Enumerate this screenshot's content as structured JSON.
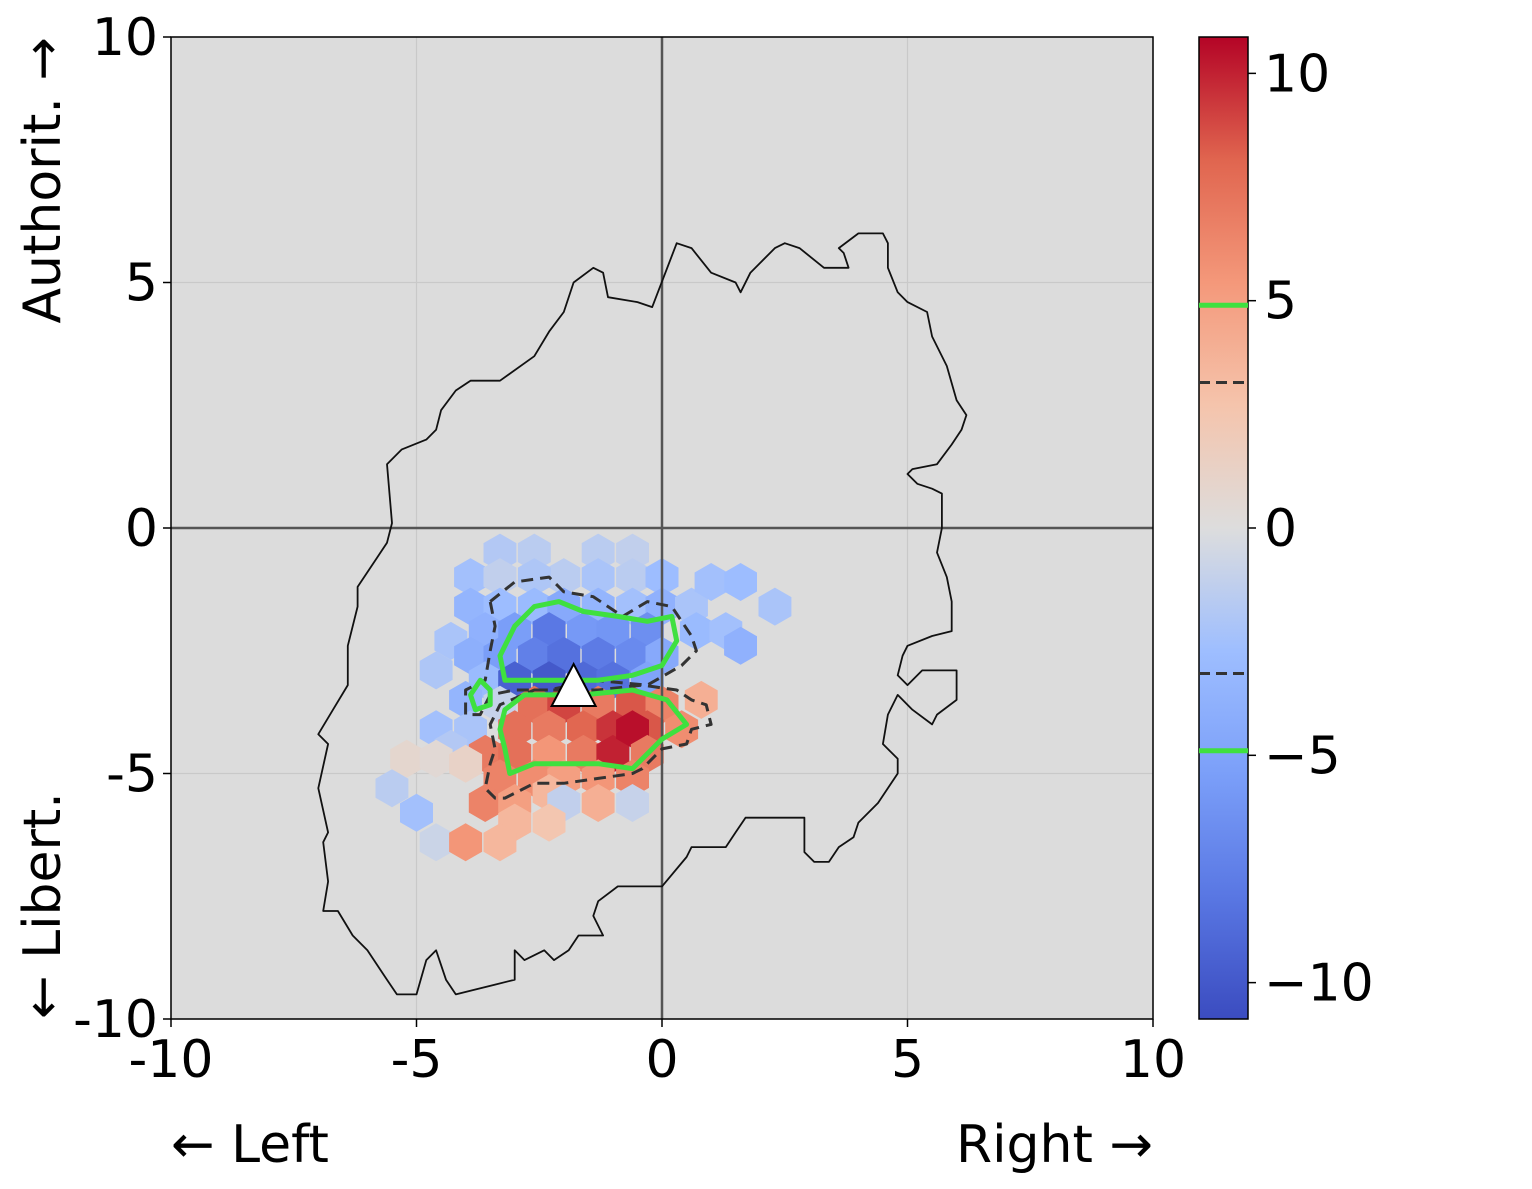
{
  "chart_data": {
    "type": "hexbin",
    "title": "",
    "x_tick_labels": [
      "-10",
      "-5",
      "0",
      "5",
      "10"
    ],
    "y_tick_labels": [
      "10",
      "5",
      "0",
      "-5",
      "-10"
    ],
    "xlim": [
      -10,
      10
    ],
    "ylim": [
      -10,
      10
    ],
    "xlabel_left": "← Left",
    "xlabel_right": "Right →",
    "ylabel_top": "Authorit. →",
    "ylabel_bottom": "← Libert.",
    "grid": true,
    "background_color": "#dcdcdc",
    "reference_lines": [
      {
        "axis": "x",
        "value": 0
      },
      {
        "axis": "y",
        "value": 0
      }
    ],
    "colorbar": {
      "colormap": "coolwarm",
      "range": [
        -10.8,
        10.8
      ],
      "tick_labels": [
        "10",
        "5",
        "0",
        "−5",
        "−10"
      ],
      "tick_values": [
        10,
        5,
        0,
        -5,
        -10
      ],
      "contour_markers": [
        {
          "value": 4.9,
          "style": "solid",
          "color": "#3fe03f"
        },
        {
          "value": 3.2,
          "style": "dashed",
          "color": "#333333"
        },
        {
          "value": -3.2,
          "style": "dashed",
          "color": "#333333"
        },
        {
          "value": -4.9,
          "style": "solid",
          "color": "#3fe03f"
        }
      ]
    },
    "hexbins": [
      {
        "x": -1.3,
        "y": -0.5,
        "v": -1.5
      },
      {
        "x": -0.6,
        "y": -0.5,
        "v": -1.2
      },
      {
        "x": -2.0,
        "y": -1.0,
        "v": -1.5
      },
      {
        "x": -2.6,
        "y": -0.5,
        "v": -1.5
      },
      {
        "x": -3.3,
        "y": -0.5,
        "v": -1.8
      },
      {
        "x": -3.9,
        "y": -1.0,
        "v": -2.5
      },
      {
        "x": -3.3,
        "y": -1.0,
        "v": -1.2
      },
      {
        "x": -2.6,
        "y": -1.0,
        "v": -2.0
      },
      {
        "x": -1.3,
        "y": -1.0,
        "v": -2.2
      },
      {
        "x": -0.6,
        "y": -1.0,
        "v": -1.5
      },
      {
        "x": 0.0,
        "y": -1.0,
        "v": -2.8
      },
      {
        "x": -3.9,
        "y": -1.6,
        "v": -3.5
      },
      {
        "x": -3.3,
        "y": -1.6,
        "v": -2.8
      },
      {
        "x": -2.6,
        "y": -1.6,
        "v": -3.0
      },
      {
        "x": -2.0,
        "y": -1.6,
        "v": -4.5
      },
      {
        "x": -1.3,
        "y": -1.6,
        "v": -3.5
      },
      {
        "x": -0.6,
        "y": -1.6,
        "v": -2.5
      },
      {
        "x": 0.0,
        "y": -1.6,
        "v": -3.8
      },
      {
        "x": 0.6,
        "y": -1.6,
        "v": -2.2
      },
      {
        "x": 1.0,
        "y": -1.1,
        "v": -2.5
      },
      {
        "x": 1.6,
        "y": -1.1,
        "v": -2.8
      },
      {
        "x": 0.7,
        "y": -2.1,
        "v": -3.0
      },
      {
        "x": 1.3,
        "y": -2.1,
        "v": -2.5
      },
      {
        "x": 2.3,
        "y": -1.6,
        "v": -2.2
      },
      {
        "x": -3.6,
        "y": -2.1,
        "v": -3.8
      },
      {
        "x": -3.0,
        "y": -2.1,
        "v": -5.5
      },
      {
        "x": -2.3,
        "y": -2.1,
        "v": -8.0
      },
      {
        "x": -1.6,
        "y": -2.1,
        "v": -5.8
      },
      {
        "x": -1.0,
        "y": -2.1,
        "v": -6.0
      },
      {
        "x": -0.3,
        "y": -2.1,
        "v": -6.5
      },
      {
        "x": -4.3,
        "y": -2.3,
        "v": -2.2
      },
      {
        "x": -3.9,
        "y": -2.6,
        "v": -4.0
      },
      {
        "x": -3.3,
        "y": -2.6,
        "v": -5.5
      },
      {
        "x": -2.6,
        "y": -2.6,
        "v": -7.5
      },
      {
        "x": -2.0,
        "y": -2.6,
        "v": -8.5
      },
      {
        "x": -1.3,
        "y": -2.6,
        "v": -7.8
      },
      {
        "x": -0.6,
        "y": -2.6,
        "v": -6.8
      },
      {
        "x": 0.0,
        "y": -2.6,
        "v": -4.5
      },
      {
        "x": 1.6,
        "y": -2.4,
        "v": -3.8
      },
      {
        "x": -4.6,
        "y": -2.9,
        "v": -2.0
      },
      {
        "x": -3.6,
        "y": -3.1,
        "v": -3.0
      },
      {
        "x": -3.0,
        "y": -3.1,
        "v": -9.5
      },
      {
        "x": -2.3,
        "y": -3.1,
        "v": -10.0
      },
      {
        "x": -1.6,
        "y": -3.1,
        "v": -9.0
      },
      {
        "x": -1.0,
        "y": -3.1,
        "v": -8.5
      },
      {
        "x": -0.3,
        "y": -3.1,
        "v": -5.0
      },
      {
        "x": -4.0,
        "y": -3.5,
        "v": -3.5
      },
      {
        "x": -3.3,
        "y": -3.6,
        "v": -1.0
      },
      {
        "x": -2.6,
        "y": -3.6,
        "v": 7.5
      },
      {
        "x": -2.0,
        "y": -3.6,
        "v": 9.0
      },
      {
        "x": -1.3,
        "y": -3.6,
        "v": 7.0
      },
      {
        "x": -0.6,
        "y": -3.6,
        "v": 8.5
      },
      {
        "x": 0.0,
        "y": -3.6,
        "v": 6.5
      },
      {
        "x": 0.8,
        "y": -3.5,
        "v": 4.0
      },
      {
        "x": -4.6,
        "y": -4.1,
        "v": -2.5
      },
      {
        "x": -3.9,
        "y": -4.1,
        "v": -2.2
      },
      {
        "x": -3.0,
        "y": -4.1,
        "v": 7.5
      },
      {
        "x": -2.3,
        "y": -4.1,
        "v": 7.0
      },
      {
        "x": -1.6,
        "y": -4.1,
        "v": 8.0
      },
      {
        "x": -1.0,
        "y": -4.1,
        "v": 9.5
      },
      {
        "x": -0.3,
        "y": -4.1,
        "v": 8.5
      },
      {
        "x": 0.4,
        "y": -4.1,
        "v": 6.0
      },
      {
        "x": -4.3,
        "y": -4.5,
        "v": -1.8
      },
      {
        "x": -3.6,
        "y": -4.6,
        "v": 7.0
      },
      {
        "x": -3.0,
        "y": -4.6,
        "v": 7.5
      },
      {
        "x": -2.3,
        "y": -4.6,
        "v": 5.5
      },
      {
        "x": -1.6,
        "y": -4.6,
        "v": 7.0
      },
      {
        "x": -1.0,
        "y": -4.6,
        "v": 10.0
      },
      {
        "x": -0.6,
        "y": -4.1,
        "v": 10.5
      },
      {
        "x": -0.3,
        "y": -4.6,
        "v": 7.0
      },
      {
        "x": -5.2,
        "y": -4.7,
        "v": 0.8
      },
      {
        "x": -4.6,
        "y": -4.7,
        "v": 0.5
      },
      {
        "x": -4.0,
        "y": -4.8,
        "v": 1.2
      },
      {
        "x": -3.3,
        "y": -5.1,
        "v": 6.5
      },
      {
        "x": -2.6,
        "y": -5.1,
        "v": 6.0
      },
      {
        "x": -2.0,
        "y": -5.1,
        "v": 5.0
      },
      {
        "x": -1.3,
        "y": -5.1,
        "v": 5.5
      },
      {
        "x": -0.6,
        "y": -5.1,
        "v": 6.5
      },
      {
        "x": -5.5,
        "y": -5.3,
        "v": -1.5
      },
      {
        "x": -3.6,
        "y": -5.6,
        "v": 6.5
      },
      {
        "x": -3.0,
        "y": -5.6,
        "v": 5.0
      },
      {
        "x": -2.3,
        "y": -5.4,
        "v": 3.5
      },
      {
        "x": -2.0,
        "y": -5.6,
        "v": -1.2
      },
      {
        "x": -1.3,
        "y": -5.6,
        "v": 4.0
      },
      {
        "x": -0.6,
        "y": -5.6,
        "v": -1.0
      },
      {
        "x": -5.0,
        "y": -5.8,
        "v": -2.5
      },
      {
        "x": -3.0,
        "y": -6.0,
        "v": 3.5
      },
      {
        "x": -2.3,
        "y": -6.0,
        "v": 2.5
      },
      {
        "x": -4.6,
        "y": -6.4,
        "v": -0.8
      },
      {
        "x": -4.0,
        "y": -6.4,
        "v": 5.5
      },
      {
        "x": -3.3,
        "y": -6.4,
        "v": 3.5
      }
    ],
    "outline_polygon": [
      [
        -5.5,
        0.1
      ],
      [
        -5.6,
        1.3
      ],
      [
        -5.3,
        1.6
      ],
      [
        -4.8,
        1.8
      ],
      [
        -4.6,
        2.0
      ],
      [
        -4.5,
        2.4
      ],
      [
        -4.2,
        2.8
      ],
      [
        -3.9,
        3.0
      ],
      [
        -3.3,
        3.0
      ],
      [
        -2.6,
        3.5
      ],
      [
        -2.3,
        4.0
      ],
      [
        -2.0,
        4.4
      ],
      [
        -1.8,
        5.0
      ],
      [
        -1.4,
        5.3
      ],
      [
        -1.2,
        5.2
      ],
      [
        -1.1,
        4.7
      ],
      [
        -0.5,
        4.6
      ],
      [
        -0.2,
        4.5
      ],
      [
        0.3,
        5.8
      ],
      [
        0.6,
        5.7
      ],
      [
        1.0,
        5.2
      ],
      [
        1.5,
        5.0
      ],
      [
        1.6,
        4.8
      ],
      [
        1.8,
        5.2
      ],
      [
        2.0,
        5.4
      ],
      [
        2.3,
        5.7
      ],
      [
        2.5,
        5.8
      ],
      [
        2.8,
        5.7
      ],
      [
        3.3,
        5.3
      ],
      [
        3.8,
        5.3
      ],
      [
        3.7,
        5.6
      ],
      [
        3.6,
        5.7
      ],
      [
        4.0,
        6.0
      ],
      [
        4.5,
        6.0
      ],
      [
        4.6,
        5.8
      ],
      [
        4.6,
        5.3
      ],
      [
        4.8,
        4.8
      ],
      [
        5.0,
        4.6
      ],
      [
        5.4,
        4.4
      ],
      [
        5.5,
        3.9
      ],
      [
        5.8,
        3.3
      ],
      [
        6.0,
        2.6
      ],
      [
        6.2,
        2.3
      ],
      [
        6.1,
        2.0
      ],
      [
        5.9,
        1.7
      ],
      [
        5.6,
        1.3
      ],
      [
        5.1,
        1.2
      ],
      [
        5.0,
        1.1
      ],
      [
        5.2,
        0.9
      ],
      [
        5.5,
        0.8
      ],
      [
        5.7,
        0.7
      ],
      [
        5.7,
        0.0
      ],
      [
        5.6,
        -0.5
      ],
      [
        5.8,
        -1.0
      ],
      [
        5.9,
        -1.5
      ],
      [
        5.9,
        -2.1
      ],
      [
        5.5,
        -2.2
      ],
      [
        5.0,
        -2.4
      ],
      [
        4.9,
        -2.6
      ],
      [
        4.8,
        -3.0
      ],
      [
        5.0,
        -3.2
      ],
      [
        5.3,
        -2.9
      ],
      [
        6.0,
        -2.9
      ],
      [
        6.0,
        -3.5
      ],
      [
        5.6,
        -3.8
      ],
      [
        5.5,
        -4.0
      ],
      [
        5.1,
        -3.7
      ],
      [
        4.8,
        -3.4
      ],
      [
        4.6,
        -3.8
      ],
      [
        4.5,
        -4.4
      ],
      [
        4.8,
        -4.7
      ],
      [
        4.8,
        -5.0
      ],
      [
        4.4,
        -5.6
      ],
      [
        4.0,
        -6.0
      ],
      [
        3.9,
        -6.3
      ],
      [
        3.6,
        -6.5
      ],
      [
        3.4,
        -6.8
      ],
      [
        3.1,
        -6.8
      ],
      [
        2.9,
        -6.6
      ],
      [
        2.9,
        -5.9
      ],
      [
        1.7,
        -5.9
      ],
      [
        1.5,
        -6.2
      ],
      [
        1.3,
        -6.5
      ],
      [
        0.6,
        -6.5
      ],
      [
        0.5,
        -6.7
      ],
      [
        0.0,
        -7.3
      ],
      [
        -0.4,
        -7.3
      ],
      [
        -0.9,
        -7.3
      ],
      [
        -1.3,
        -7.6
      ],
      [
        -1.4,
        -7.9
      ],
      [
        -1.2,
        -8.3
      ],
      [
        -1.7,
        -8.3
      ],
      [
        -1.9,
        -8.6
      ],
      [
        -2.2,
        -8.8
      ],
      [
        -2.4,
        -8.6
      ],
      [
        -2.8,
        -8.8
      ],
      [
        -3.0,
        -8.6
      ],
      [
        -3.0,
        -9.2
      ],
      [
        -3.4,
        -9.3
      ],
      [
        -3.8,
        -9.4
      ],
      [
        -4.2,
        -9.5
      ],
      [
        -4.4,
        -9.2
      ],
      [
        -4.6,
        -8.6
      ],
      [
        -4.8,
        -8.8
      ],
      [
        -5.0,
        -9.5
      ],
      [
        -5.4,
        -9.5
      ],
      [
        -5.6,
        -9.2
      ],
      [
        -6.0,
        -8.6
      ],
      [
        -6.3,
        -8.3
      ],
      [
        -6.6,
        -7.8
      ],
      [
        -6.9,
        -7.8
      ],
      [
        -6.8,
        -7.2
      ],
      [
        -6.9,
        -6.4
      ],
      [
        -6.8,
        -6.2
      ],
      [
        -7.0,
        -5.3
      ],
      [
        -6.8,
        -4.4
      ],
      [
        -7.0,
        -4.2
      ],
      [
        -6.7,
        -3.7
      ],
      [
        -6.4,
        -3.2
      ],
      [
        -6.4,
        -2.4
      ],
      [
        -6.2,
        -1.6
      ],
      [
        -6.2,
        -1.2
      ],
      [
        -5.8,
        -0.6
      ],
      [
        -5.6,
        -0.3
      ]
    ],
    "contours": [
      {
        "style": "dashed",
        "color": "#333333",
        "points": [
          [
            -3.5,
            -1.5
          ],
          [
            -3.0,
            -1.1
          ],
          [
            -2.3,
            -1.0
          ],
          [
            -2.0,
            -1.3
          ],
          [
            -1.4,
            -1.4
          ],
          [
            -0.8,
            -1.8
          ],
          [
            -0.3,
            -1.5
          ],
          [
            0.2,
            -1.6
          ],
          [
            0.6,
            -2.2
          ],
          [
            0.7,
            -2.5
          ],
          [
            0.4,
            -2.8
          ],
          [
            -0.3,
            -3.2
          ],
          [
            -1.4,
            -3.1
          ],
          [
            -2.3,
            -3.3
          ],
          [
            -3.0,
            -3.3
          ],
          [
            -3.5,
            -3.4
          ],
          [
            -3.7,
            -3.8
          ],
          [
            -4.0,
            -3.8
          ],
          [
            -4.0,
            -3.3
          ],
          [
            -3.6,
            -3.1
          ],
          [
            -3.5,
            -2.5
          ],
          [
            -3.4,
            -2.0
          ]
        ]
      },
      {
        "style": "solid",
        "color": "#3fe03f",
        "points": [
          [
            -3.0,
            -2.0
          ],
          [
            -2.6,
            -1.6
          ],
          [
            -2.1,
            -1.5
          ],
          [
            -1.6,
            -1.7
          ],
          [
            -0.9,
            -1.8
          ],
          [
            -0.3,
            -1.9
          ],
          [
            0.2,
            -1.8
          ],
          [
            0.3,
            -2.3
          ],
          [
            0.0,
            -2.8
          ],
          [
            -0.6,
            -3.0
          ],
          [
            -1.3,
            -3.1
          ],
          [
            -2.1,
            -3.1
          ],
          [
            -2.8,
            -3.1
          ],
          [
            -3.2,
            -3.1
          ],
          [
            -3.3,
            -2.6
          ]
        ]
      },
      {
        "style": "solid",
        "color": "#3fe03f",
        "points": [
          [
            -3.7,
            -3.1
          ],
          [
            -3.5,
            -3.3
          ],
          [
            -3.5,
            -3.6
          ],
          [
            -3.8,
            -3.7
          ],
          [
            -3.9,
            -3.4
          ]
        ]
      },
      {
        "style": "dashed",
        "color": "#333333",
        "points": [
          [
            -2.6,
            -3.3
          ],
          [
            -1.3,
            -3.3
          ],
          [
            -0.4,
            -3.2
          ],
          [
            0.3,
            -3.3
          ],
          [
            0.6,
            -3.5
          ],
          [
            0.9,
            -3.6
          ],
          [
            1.0,
            -4.0
          ],
          [
            0.6,
            -4.1
          ],
          [
            0.5,
            -4.4
          ],
          [
            0.0,
            -4.5
          ],
          [
            -0.4,
            -4.9
          ],
          [
            -0.6,
            -5.0
          ],
          [
            -1.3,
            -5.1
          ],
          [
            -2.0,
            -5.2
          ],
          [
            -2.6,
            -5.2
          ],
          [
            -3.2,
            -5.5
          ],
          [
            -3.4,
            -5.5
          ],
          [
            -3.6,
            -5.3
          ],
          [
            -3.5,
            -4.8
          ],
          [
            -3.4,
            -4.5
          ],
          [
            -3.5,
            -4.0
          ],
          [
            -3.3,
            -3.6
          ]
        ]
      },
      {
        "style": "solid",
        "color": "#3fe03f",
        "points": [
          [
            -2.8,
            -3.4
          ],
          [
            -1.6,
            -3.4
          ],
          [
            -0.6,
            -3.3
          ],
          [
            0.1,
            -3.5
          ],
          [
            0.5,
            -4.0
          ],
          [
            0.0,
            -4.3
          ],
          [
            -0.3,
            -4.6
          ],
          [
            -0.6,
            -4.9
          ],
          [
            -1.3,
            -4.8
          ],
          [
            -2.0,
            -4.8
          ],
          [
            -2.6,
            -4.8
          ],
          [
            -3.1,
            -5.0
          ],
          [
            -3.2,
            -4.5
          ],
          [
            -3.3,
            -4.1
          ],
          [
            -3.2,
            -3.7
          ]
        ]
      }
    ],
    "marker": {
      "shape": "triangle",
      "x": -1.8,
      "y": -3.3,
      "fill": "#ffffff"
    }
  }
}
